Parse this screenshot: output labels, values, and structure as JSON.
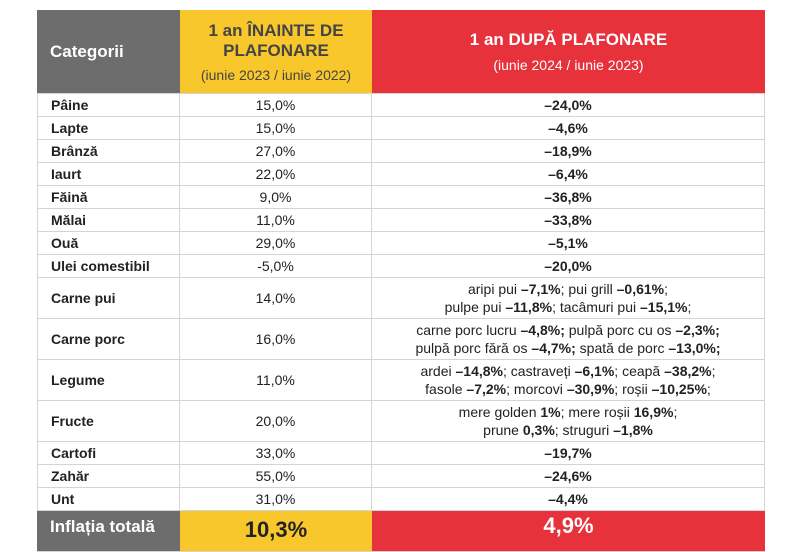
{
  "table": {
    "header": {
      "category": "Categorii",
      "before": {
        "title": [
          "1 an ÎNAINTE DE",
          "PLAFONARE"
        ],
        "period": "(iunie 2023 / iunie 2022)"
      },
      "after": {
        "title": [
          "1 an DUPĂ PLAFONARE"
        ],
        "period": "(iunie 2024 / iunie 2023)"
      }
    },
    "rows": [
      {
        "category": "Pâine",
        "before": "15,0%",
        "after": "–24,0%"
      },
      {
        "category": "Lapte",
        "before": "15,0%",
        "after": "–4,6%"
      },
      {
        "category": "Brânză",
        "before": "27,0%",
        "after": "–18,9%"
      },
      {
        "category": "Iaurt",
        "before": "22,0%",
        "after": "–6,4%"
      },
      {
        "category": "Făină",
        "before": "9,0%",
        "after": "–36,8%"
      },
      {
        "category": "Mălai",
        "before": "11,0%",
        "after": "–33,8%"
      },
      {
        "category": "Ouă",
        "before": "29,0%",
        "after": "–5,1%"
      },
      {
        "category": "Ulei comestibil",
        "before": "-5,0%",
        "after": "–20,0%"
      },
      {
        "category": "Carne pui",
        "before": "14,0%",
        "after": [
          [
            {
              "text": "aripi pui ",
              "bold": false
            },
            {
              "text": "–7,1%",
              "bold": true
            },
            {
              "text": "; pui grill ",
              "bold": false
            },
            {
              "text": "–0,61%",
              "bold": true
            },
            {
              "text": ";",
              "bold": false
            }
          ],
          [
            {
              "text": "pulpe pui ",
              "bold": false
            },
            {
              "text": "–11,8%",
              "bold": true
            },
            {
              "text": "; tacâmuri pui ",
              "bold": false
            },
            {
              "text": "–15,1%",
              "bold": true
            },
            {
              "text": ";",
              "bold": false
            }
          ]
        ]
      },
      {
        "category": "Carne porc",
        "before": "16,0%",
        "after": [
          [
            {
              "text": "carne porc lucru ",
              "bold": false
            },
            {
              "text": "–4,8%;",
              "bold": true
            },
            {
              "text": " pulpă porc cu os ",
              "bold": false
            },
            {
              "text": "–2,3%;",
              "bold": true
            }
          ],
          [
            {
              "text": "pulpă porc fără os ",
              "bold": false
            },
            {
              "text": "–4,7%;",
              "bold": true
            },
            {
              "text": " spată de porc ",
              "bold": false
            },
            {
              "text": "–13,0%;",
              "bold": true
            }
          ]
        ]
      },
      {
        "category": "Legume",
        "before": "11,0%",
        "after": [
          [
            {
              "text": "ardei ",
              "bold": false
            },
            {
              "text": "–14,8%",
              "bold": true
            },
            {
              "text": "; castraveți ",
              "bold": false
            },
            {
              "text": "–6,1%",
              "bold": true
            },
            {
              "text": "; ceapă ",
              "bold": false
            },
            {
              "text": "–38,2%",
              "bold": true
            },
            {
              "text": ";",
              "bold": false
            }
          ],
          [
            {
              "text": "fasole ",
              "bold": false
            },
            {
              "text": "–7,2%",
              "bold": true
            },
            {
              "text": "; morcovi ",
              "bold": false
            },
            {
              "text": "–30,9%",
              "bold": true
            },
            {
              "text": "; roșii ",
              "bold": false
            },
            {
              "text": "–10,25%",
              "bold": true
            },
            {
              "text": ";",
              "bold": false
            }
          ]
        ]
      },
      {
        "category": "Fructe",
        "before": "20,0%",
        "after": [
          [
            {
              "text": "mere golden ",
              "bold": false
            },
            {
              "text": "1%",
              "bold": true
            },
            {
              "text": "; mere roșii ",
              "bold": false
            },
            {
              "text": "16,9%",
              "bold": true
            },
            {
              "text": ";",
              "bold": false
            }
          ],
          [
            {
              "text": "prune ",
              "bold": false
            },
            {
              "text": "0,3%",
              "bold": true
            },
            {
              "text": "; struguri ",
              "bold": false
            },
            {
              "text": "–1,8%",
              "bold": true
            }
          ]
        ]
      },
      {
        "category": "Cartofi",
        "before": "33,0%",
        "after": "–19,7%"
      },
      {
        "category": "Zahăr",
        "before": "55,0%",
        "after": "–24,6%"
      },
      {
        "category": "Unt",
        "before": "31,0%",
        "after": "–4,4%"
      }
    ],
    "total": {
      "category": "Inflația totală",
      "before": "10,3%",
      "after": "4,9%"
    }
  }
}
